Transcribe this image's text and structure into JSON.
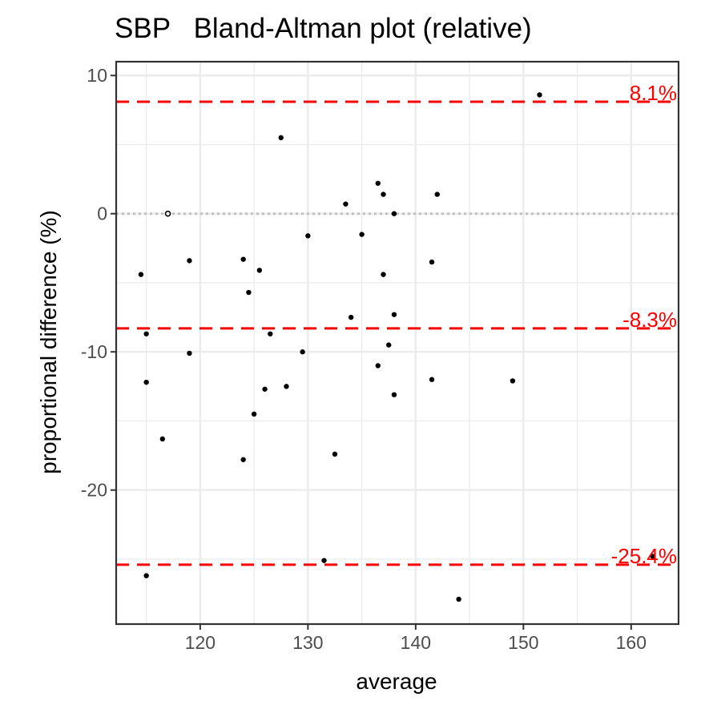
{
  "chart_data": {
    "type": "scatter",
    "title": "SBP   Bland-Altman plot (relative)",
    "xlabel": "average",
    "ylabel": "proportional difference (%)",
    "xlim": [
      112.2,
      164.4
    ],
    "ylim": [
      -29.7,
      11.0
    ],
    "x_ticks": [
      120,
      130,
      140,
      150,
      160
    ],
    "y_ticks": [
      -20,
      -10,
      0,
      10
    ],
    "grid": true,
    "zero_line": 0,
    "reference_lines": [
      {
        "value": 8.1,
        "label": "8.1%",
        "color": "#ff0000",
        "style": "dashed"
      },
      {
        "value": -8.3,
        "label": "-8.3%",
        "color": "#ff0000",
        "style": "dashed"
      },
      {
        "value": -25.4,
        "label": "-25.4%",
        "color": "#ff0000",
        "style": "dashed"
      }
    ],
    "points": [
      {
        "x": 114.5,
        "y": -4.4
      },
      {
        "x": 115.0,
        "y": -8.7
      },
      {
        "x": 115.0,
        "y": -12.2
      },
      {
        "x": 115.0,
        "y": -26.2
      },
      {
        "x": 116.5,
        "y": -16.3
      },
      {
        "x": 117.0,
        "y": 0.0,
        "open": true
      },
      {
        "x": 119.0,
        "y": -3.4
      },
      {
        "x": 119.0,
        "y": -10.1
      },
      {
        "x": 124.0,
        "y": -3.3
      },
      {
        "x": 124.0,
        "y": -17.8
      },
      {
        "x": 124.5,
        "y": -5.7
      },
      {
        "x": 125.0,
        "y": -14.5
      },
      {
        "x": 125.5,
        "y": -4.1
      },
      {
        "x": 126.0,
        "y": -12.7
      },
      {
        "x": 126.5,
        "y": -8.7
      },
      {
        "x": 127.5,
        "y": 5.5
      },
      {
        "x": 128.0,
        "y": -12.5
      },
      {
        "x": 129.5,
        "y": -10.0
      },
      {
        "x": 130.0,
        "y": -1.6
      },
      {
        "x": 131.5,
        "y": -25.1
      },
      {
        "x": 132.5,
        "y": -17.4
      },
      {
        "x": 133.5,
        "y": 0.7
      },
      {
        "x": 134.0,
        "y": -7.5
      },
      {
        "x": 135.0,
        "y": -1.5
      },
      {
        "x": 136.5,
        "y": 2.2
      },
      {
        "x": 136.5,
        "y": -11.0
      },
      {
        "x": 137.0,
        "y": 1.4
      },
      {
        "x": 137.0,
        "y": -4.4
      },
      {
        "x": 137.5,
        "y": -9.5
      },
      {
        "x": 138.0,
        "y": 0.0
      },
      {
        "x": 138.0,
        "y": -7.3
      },
      {
        "x": 138.0,
        "y": -13.1
      },
      {
        "x": 141.5,
        "y": -3.5
      },
      {
        "x": 141.5,
        "y": -12.0
      },
      {
        "x": 142.0,
        "y": 1.4
      },
      {
        "x": 144.0,
        "y": -27.9
      },
      {
        "x": 149.0,
        "y": -12.1
      },
      {
        "x": 151.5,
        "y": 8.6
      },
      {
        "x": 162.0,
        "y": -24.8
      }
    ]
  }
}
